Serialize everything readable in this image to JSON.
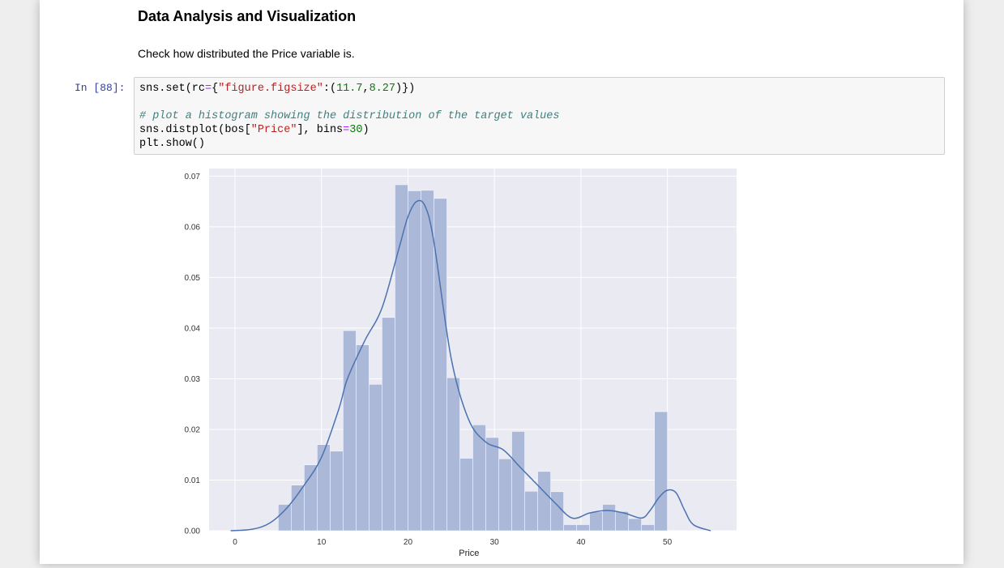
{
  "markdown": {
    "heading": "Data Analysis and Visualization",
    "paragraph": "Check how distributed the Price variable is."
  },
  "cell": {
    "prompt": "In [88]:",
    "code_lines": [
      [
        "sns.set(rc",
        {
          "op": "="
        },
        "{",
        {
          "str": "\"figure.figsize\""
        },
        ":(",
        {
          "num": "11.7"
        },
        ",",
        {
          "num": "8.27"
        },
        ")})"
      ],
      [],
      [
        {
          "cmt": "# plot a histogram showing the distribution of the target values"
        }
      ],
      [
        "sns.distplot(bos[",
        {
          "str": "\"Price\""
        },
        "], bins",
        {
          "op": "="
        },
        {
          "num": "30"
        },
        ")"
      ],
      [
        "plt.show()"
      ]
    ]
  },
  "colors": {
    "plot_bg": "#eaeaf2",
    "bar_fill": "#a8b6d6",
    "kde_line": "#4c72b0",
    "grid": "#ffffff"
  },
  "chart_data": {
    "type": "bar",
    "xlabel": "Price",
    "ylabel": "",
    "xlim": [
      -3,
      58
    ],
    "ylim": [
      0,
      0.0715
    ],
    "x_ticks": [
      0,
      10,
      20,
      30,
      40,
      50
    ],
    "y_ticks": [
      "0.00",
      "0.01",
      "0.02",
      "0.03",
      "0.04",
      "0.05",
      "0.06",
      "0.07"
    ],
    "grid": true,
    "bins": {
      "start": 5,
      "width": 1.5,
      "densities": [
        0.0052,
        0.009,
        0.013,
        0.017,
        0.0157,
        0.0395,
        0.0367,
        0.0289,
        0.0421,
        0.0683,
        0.0671,
        0.0672,
        0.0656,
        0.0302,
        0.0143,
        0.0209,
        0.0184,
        0.0142,
        0.0196,
        0.0078,
        0.0117,
        0.0077,
        0.0012,
        0.0012,
        0.0037,
        0.0052,
        0.0038,
        0.0024,
        0.0012,
        0.0235
      ]
    },
    "kde": {
      "x": [
        -0.5,
        2,
        4,
        6,
        8,
        10,
        12,
        13,
        15,
        17,
        19,
        20,
        21,
        22,
        23,
        25,
        27,
        29,
        31,
        33,
        35,
        37,
        39,
        41,
        43,
        45,
        47,
        48,
        49,
        50,
        51,
        52,
        53,
        55
      ],
      "y": [
        0.0,
        0.0003,
        0.0015,
        0.0045,
        0.009,
        0.0145,
        0.024,
        0.03,
        0.0375,
        0.044,
        0.056,
        0.062,
        0.065,
        0.064,
        0.057,
        0.034,
        0.022,
        0.0175,
        0.016,
        0.0125,
        0.009,
        0.0055,
        0.0025,
        0.0035,
        0.004,
        0.0035,
        0.0025,
        0.004,
        0.0065,
        0.008,
        0.0075,
        0.004,
        0.0012,
        0.0
      ]
    }
  }
}
